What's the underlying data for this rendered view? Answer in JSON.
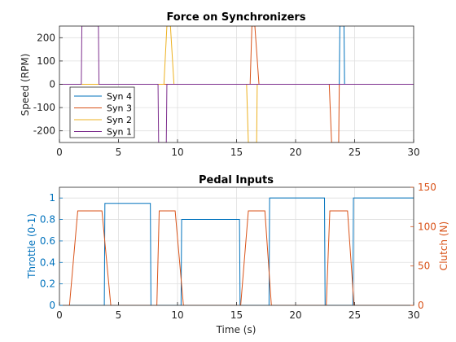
{
  "chart_data": [
    {
      "type": "line",
      "title": "Force on Synchronizers",
      "xlabel": "",
      "ylabel": "Speed (RPM)",
      "xlim": [
        0,
        30
      ],
      "ylim": [
        -250,
        250
      ],
      "xticks": [
        0,
        5,
        10,
        15,
        20,
        25,
        30
      ],
      "yticks": [
        -200,
        -100,
        0,
        100,
        200
      ],
      "grid": true,
      "legend": "bottom-left",
      "series": [
        {
          "name": "Syn 4",
          "color": "#0072BD",
          "x": [
            0,
            23.7,
            23.75,
            24.1,
            24.15,
            30
          ],
          "y": [
            0,
            0,
            250,
            250,
            0,
            0
          ]
        },
        {
          "name": "Syn 3",
          "color": "#D95319",
          "x": [
            0,
            16.15,
            16.3,
            16.55,
            16.9,
            16.95,
            22.85,
            23.05,
            23.1,
            23.65,
            23.7,
            30
          ],
          "y": [
            0,
            0,
            250,
            250,
            0,
            0,
            0,
            -250,
            -250,
            -250,
            0,
            0
          ]
        },
        {
          "name": "Syn 2",
          "color": "#EDB120",
          "x": [
            0,
            8.85,
            9.1,
            9.4,
            9.7,
            9.75,
            15.85,
            16.0,
            16.05,
            16.7,
            16.75,
            30
          ],
          "y": [
            0,
            0,
            250,
            250,
            0,
            0,
            0,
            -250,
            -250,
            -250,
            0,
            0
          ]
        },
        {
          "name": "Syn 1",
          "color": "#7E2F8E",
          "x": [
            0,
            1.85,
            1.9,
            3.3,
            3.35,
            8.35,
            8.4,
            9.05,
            9.1,
            30
          ],
          "y": [
            0,
            0,
            250,
            250,
            0,
            0,
            -250,
            -250,
            0,
            0
          ]
        }
      ]
    },
    {
      "type": "line",
      "title": "Pedal Inputs",
      "xlabel": "Time (s)",
      "ylabel": "Throttle (0-1)",
      "ylabel_right": "Clutch (N)",
      "xlim": [
        0,
        30
      ],
      "ylim": [
        0,
        1.1
      ],
      "ylim_right": [
        0,
        150
      ],
      "xticks": [
        0,
        5,
        10,
        15,
        20,
        25,
        30
      ],
      "yticks": [
        0,
        0.2,
        0.4,
        0.6,
        0.8,
        1
      ],
      "yticks_right": [
        0,
        50,
        100,
        150
      ],
      "grid": true,
      "series": [
        {
          "name": "Throttle",
          "axis": "left",
          "color": "#0072BD",
          "x": [
            0,
            3.8,
            3.85,
            7.7,
            7.75,
            10.3,
            10.35,
            15.25,
            15.3,
            17.75,
            17.8,
            22.45,
            22.5,
            24.85,
            24.9,
            30
          ],
          "y": [
            0,
            0,
            0.95,
            0.95,
            0,
            0,
            0.8,
            0.8,
            0,
            0,
            1.0,
            1.0,
            0,
            0,
            1.0,
            1.0
          ]
        },
        {
          "name": "Clutch",
          "axis": "right",
          "color": "#D95319",
          "x": [
            0,
            0.85,
            1.55,
            3.6,
            4.35,
            8.25,
            8.45,
            9.8,
            10.5,
            15.35,
            16.0,
            17.4,
            17.95,
            22.6,
            22.9,
            24.4,
            24.95,
            30
          ],
          "y": [
            0,
            0,
            120,
            120,
            0,
            0,
            120,
            120,
            0,
            0,
            120,
            120,
            0,
            0,
            120,
            120,
            0,
            0
          ]
        }
      ]
    }
  ]
}
